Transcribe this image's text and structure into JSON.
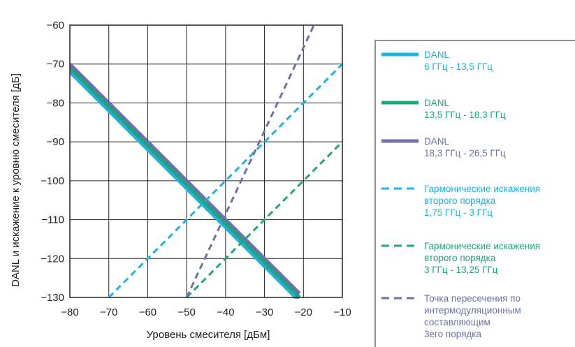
{
  "chart_data": {
    "type": "line",
    "xlabel": "Уровень смесителя [дБм]",
    "ylabel": "DANL и искажение к уровню смесителя [дБ]",
    "xlim": [
      -80,
      -10
    ],
    "ylim": [
      -130,
      -60
    ],
    "x_ticks": [
      "−80",
      "−70",
      "−60",
      "−50",
      "−40",
      "−30",
      "−20",
      "−10"
    ],
    "y_ticks": [
      "−60",
      "−70",
      "−80",
      "−90",
      "−100",
      "−110",
      "−120",
      "−130"
    ],
    "grid": true,
    "legend_position": "right",
    "series": [
      {
        "name_lines": [
          "DANL",
          "6 ГГц - 13,5 ГГц"
        ],
        "color": "#1ab4de",
        "style": "solid",
        "x": [
          -80,
          -21
        ],
        "y": [
          -72,
          -131
        ]
      },
      {
        "name_lines": [
          "DANL",
          "13,5 ГГц - 18,3 ГГц"
        ],
        "color": "#1fa77c",
        "style": "solid",
        "x": [
          -80,
          -21
        ],
        "y": [
          -71,
          -130
        ]
      },
      {
        "name_lines": [
          "DANL",
          "18,3 ГГц - 26,5 ГГц"
        ],
        "color": "#6a72a6",
        "style": "solid",
        "x": [
          -80,
          -21
        ],
        "y": [
          -70,
          -129
        ]
      },
      {
        "name_lines": [
          "Гармонические искажения",
          "второго порядка",
          "1,75 ГГц - 3 ГГц"
        ],
        "color": "#1ab4de",
        "style": "dashed",
        "x": [
          -70,
          -10
        ],
        "y": [
          -130,
          -70
        ]
      },
      {
        "name_lines": [
          "Гармонические искажения",
          "второго порядка",
          "3 ГГц - 13,25 ГГц"
        ],
        "color": "#1fa77c",
        "style": "dashed",
        "x": [
          -50,
          -10
        ],
        "y": [
          -130,
          -90
        ]
      },
      {
        "name_lines": [
          "Точка пересечения по",
          "интермодуляционным",
          "составляющим",
          "3его порядка"
        ],
        "color": "#6a72a6",
        "style": "dashed",
        "x": [
          -50,
          -17.3
        ],
        "y": [
          -130,
          -60
        ]
      }
    ]
  }
}
